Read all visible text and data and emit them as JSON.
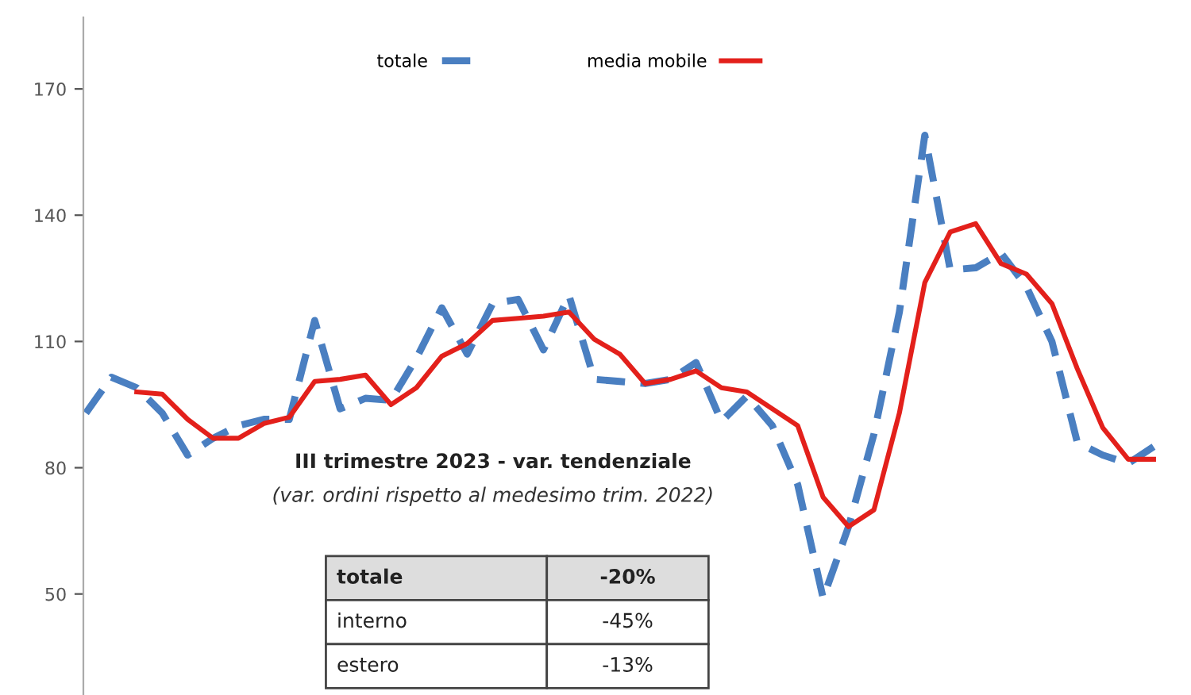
{
  "chart_data": {
    "type": "line",
    "categories": [
      null,
      null,
      null,
      null,
      null,
      null,
      null,
      null,
      null,
      null,
      null,
      null,
      null,
      null,
      null,
      null,
      null,
      null,
      null,
      null,
      null,
      null,
      null,
      null,
      null,
      null,
      null,
      null,
      null,
      null,
      null,
      null,
      null,
      null,
      null,
      null,
      null,
      null,
      null,
      null,
      null,
      null,
      null
    ],
    "series": [
      {
        "name": "totale",
        "color": "#4a7fc1",
        "line_style": "dashed",
        "values": [
          93,
          101.5,
          99,
          93,
          83,
          87,
          90,
          91.5,
          91.5,
          115,
          94,
          96.5,
          96,
          106,
          118,
          107,
          119,
          120,
          108,
          121,
          101,
          100.5,
          100,
          101,
          105,
          91,
          97,
          90,
          76,
          49,
          66,
          88,
          117,
          159,
          127,
          127.5,
          131,
          123,
          110,
          86,
          83,
          81,
          85
        ]
      },
      {
        "name": "media mobile",
        "color": "#e3201b",
        "line_style": "solid",
        "values": [
          null,
          null,
          98,
          97.5,
          91.5,
          87,
          87,
          90.5,
          92,
          100.5,
          101,
          102,
          95,
          99,
          106.5,
          109.5,
          115,
          115.5,
          116,
          117,
          110.5,
          107,
          100,
          101,
          103,
          99,
          98,
          94,
          90,
          73,
          66,
          70,
          93,
          124,
          136,
          138,
          128.5,
          126,
          119,
          103.5,
          89.5,
          82,
          82
        ]
      }
    ],
    "ylim": [
      26,
      187
    ],
    "yticks": [
      50,
      80,
      110,
      140,
      170
    ],
    "legend": "top",
    "grid": false,
    "marker": "none",
    "annotations": [
      "III trimestre 2023 - var. tendenziale",
      "(var. ordini rispetto al medesimo trim. 2022)",
      "totale",
      "-20%",
      "interno",
      "-45%",
      "estero",
      "-13%"
    ]
  }
}
